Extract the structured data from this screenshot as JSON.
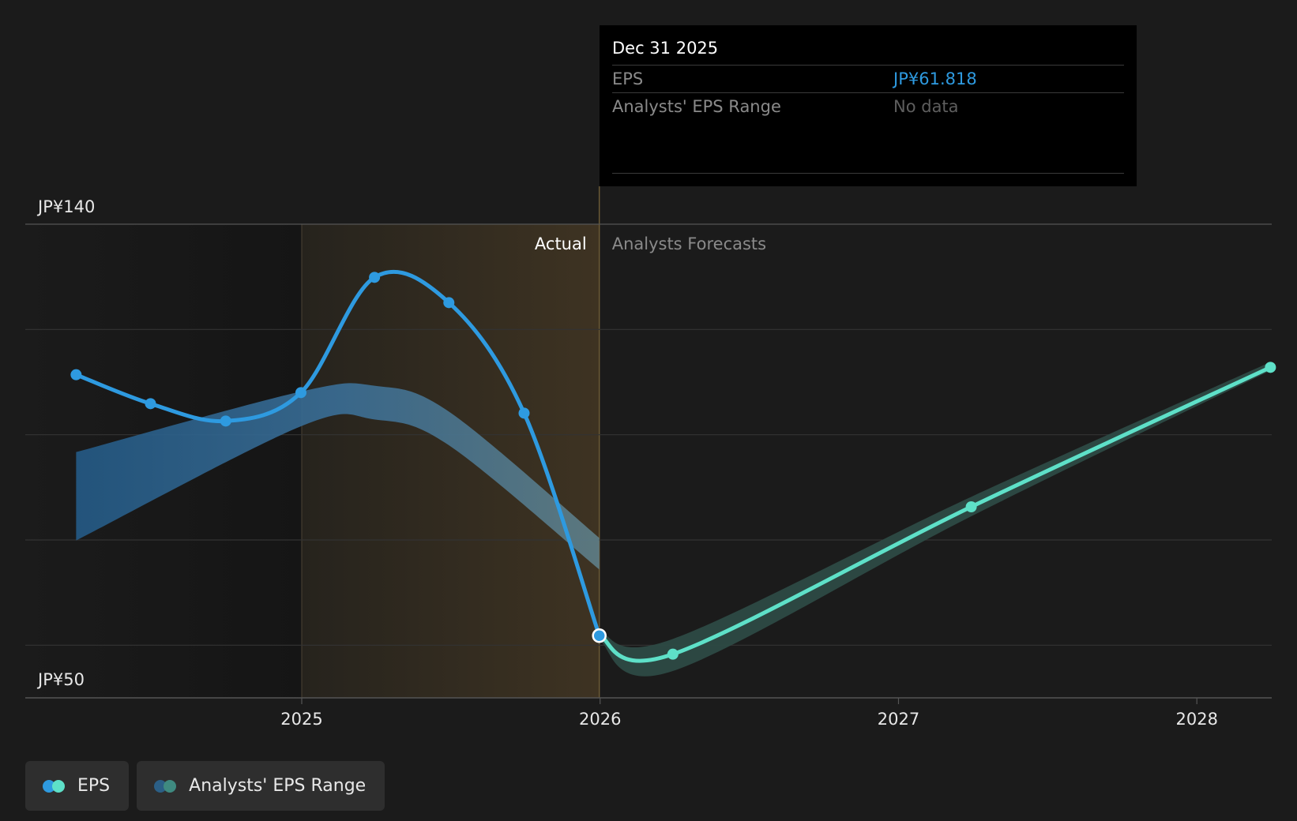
{
  "chart_data": {
    "type": "line",
    "y_labels": {
      "top": "JP¥140",
      "bottom": "JP¥50"
    },
    "ylim": [
      50,
      140
    ],
    "x_ticks": [
      "2025",
      "2026",
      "2027",
      "2028"
    ],
    "region_labels": {
      "actual": "Actual",
      "forecast": "Analysts Forecasts"
    },
    "series": [
      {
        "name": "EPS",
        "kind": "actual",
        "color": "#2e9ae0",
        "points": [
          {
            "x": "2024-03-31",
            "y": 111.4
          },
          {
            "x": "2024-06-30",
            "y": 105.9
          },
          {
            "x": "2024-09-30",
            "y": 102.6
          },
          {
            "x": "2024-12-31",
            "y": 108.0
          },
          {
            "x": "2025-03-31",
            "y": 129.9
          },
          {
            "x": "2025-06-30",
            "y": 125.1
          },
          {
            "x": "2025-09-30",
            "y": 104.1
          },
          {
            "x": "2025-12-31",
            "y": 61.818
          }
        ]
      },
      {
        "name": "EPS",
        "kind": "forecast",
        "color": "#5ee0c8",
        "points": [
          {
            "x": "2025-12-31",
            "y": 61.818
          },
          {
            "x": "2026-03-31",
            "y": 58.3
          },
          {
            "x": "2027-03-31",
            "y": 86.3
          },
          {
            "x": "2028-03-31",
            "y": 112.8
          }
        ]
      }
    ],
    "range_band_historical": [
      {
        "x": "2024-03-31",
        "low": 79.9,
        "high": 96.7
      },
      {
        "x": "2024-12-31",
        "low": 101.6,
        "high": 108.2
      },
      {
        "x": "2025-03-31",
        "low": 102.9,
        "high": 109.3
      },
      {
        "x": "2025-06-30",
        "low": 98.0,
        "high": 104.4
      },
      {
        "x": "2025-12-31",
        "low": 74.4,
        "high": 80.4
      }
    ],
    "range_band_forecast": [
      {
        "x": "2025-12-31",
        "low": 60.9,
        "high": 62.7
      },
      {
        "x": "2026-03-31",
        "low": 55.1,
        "high": 61.2
      },
      {
        "x": "2027-03-31",
        "low": 84.5,
        "high": 88.2
      },
      {
        "x": "2028-03-31",
        "low": 112.2,
        "high": 113.8
      }
    ]
  },
  "tooltip": {
    "date": "Dec 31 2025",
    "rows": [
      {
        "label": "EPS",
        "value": "JP¥61.818"
      },
      {
        "label": "Analysts' EPS Range",
        "value": "No data"
      }
    ]
  },
  "legend": [
    {
      "label": "EPS",
      "colors": [
        "#2e9ae0",
        "#5ee0c8"
      ]
    },
    {
      "label": "Analysts' EPS Range",
      "colors": [
        "#2b5f86",
        "#3f8a80"
      ]
    }
  ]
}
